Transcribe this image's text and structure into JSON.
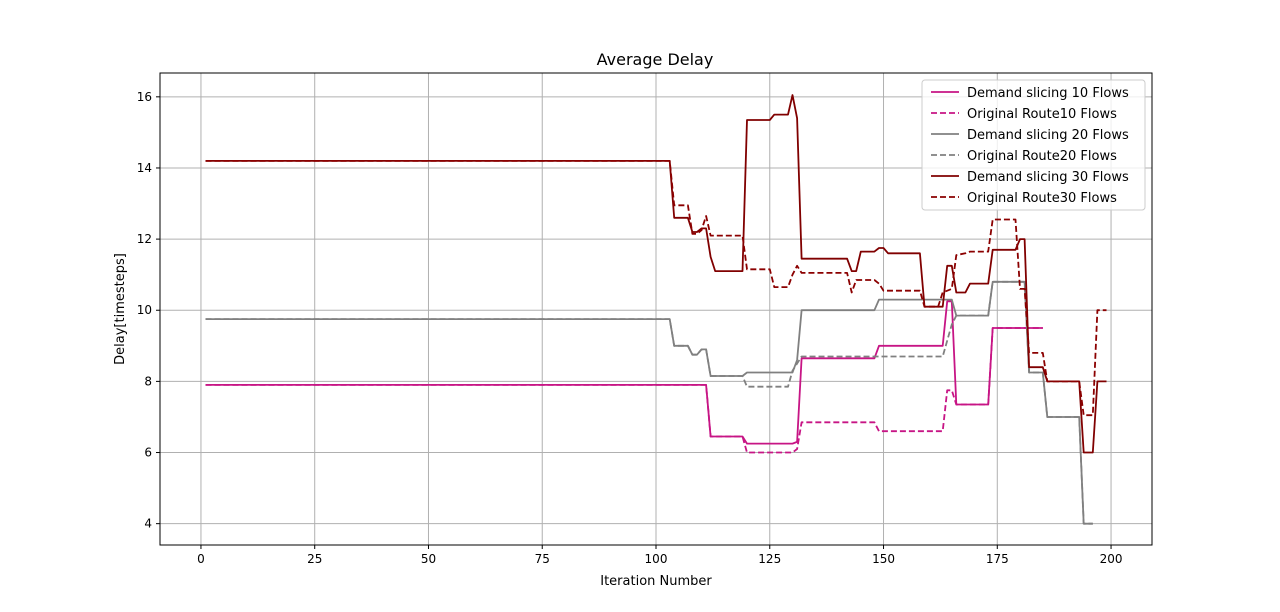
{
  "chart_data": {
    "type": "line",
    "title": "Average Delay",
    "xlabel": "Iteration Number",
    "ylabel": "Delay[timesteps]",
    "xlim": [
      -9,
      209
    ],
    "ylim": [
      3.4,
      16.67
    ],
    "xticks": [
      0,
      25,
      50,
      75,
      100,
      125,
      150,
      175,
      200
    ],
    "yticks": [
      4,
      6,
      8,
      10,
      12,
      14,
      16
    ],
    "grid": true,
    "legend_position": "top-right",
    "series": [
      {
        "name": "Demand slicing 10 Flows",
        "color": "#c71585",
        "dash": "solid",
        "points": [
          [
            1,
            7.9
          ],
          [
            111,
            7.9
          ],
          [
            112,
            6.45
          ],
          [
            119,
            6.45
          ],
          [
            120,
            6.25
          ],
          [
            130,
            6.25
          ],
          [
            131,
            6.3
          ],
          [
            132,
            8.65
          ],
          [
            148,
            8.65
          ],
          [
            149,
            9.0
          ],
          [
            163,
            9.0
          ],
          [
            164,
            10.25
          ],
          [
            165,
            10.25
          ],
          [
            166,
            7.35
          ],
          [
            173,
            7.35
          ],
          [
            174,
            9.5
          ],
          [
            185,
            9.5
          ]
        ]
      },
      {
        "name": "Original Route10 Flows",
        "color": "#c71585",
        "dash": "dashed",
        "points": [
          [
            1,
            7.9
          ],
          [
            111,
            7.9
          ],
          [
            112,
            6.45
          ],
          [
            119,
            6.45
          ],
          [
            120,
            6.0
          ],
          [
            130,
            6.0
          ],
          [
            131,
            6.1
          ],
          [
            132,
            6.85
          ],
          [
            148,
            6.85
          ],
          [
            149,
            6.6
          ],
          [
            163,
            6.6
          ],
          [
            164,
            7.75
          ],
          [
            165,
            7.75
          ],
          [
            166,
            7.35
          ],
          [
            173,
            7.35
          ],
          [
            174,
            9.5
          ],
          [
            185,
            9.5
          ]
        ]
      },
      {
        "name": "Demand slicing 20 Flows",
        "color": "#808080",
        "dash": "solid",
        "points": [
          [
            1,
            9.75
          ],
          [
            103,
            9.75
          ],
          [
            104,
            9.0
          ],
          [
            107,
            9.0
          ],
          [
            108,
            8.75
          ],
          [
            109,
            8.75
          ],
          [
            110,
            8.9
          ],
          [
            111,
            8.9
          ],
          [
            112,
            8.15
          ],
          [
            119,
            8.15
          ],
          [
            120,
            8.25
          ],
          [
            130,
            8.25
          ],
          [
            131,
            8.6
          ],
          [
            132,
            10.0
          ],
          [
            148,
            10.0
          ],
          [
            149,
            10.3
          ],
          [
            163,
            10.3
          ],
          [
            164,
            10.3
          ],
          [
            165,
            10.3
          ],
          [
            166,
            9.85
          ],
          [
            173,
            9.85
          ],
          [
            174,
            10.8
          ],
          [
            181,
            10.8
          ],
          [
            182,
            8.25
          ],
          [
            185,
            8.25
          ],
          [
            186,
            7.0
          ],
          [
            193,
            7.0
          ],
          [
            194,
            4.0
          ],
          [
            196,
            4.0
          ]
        ]
      },
      {
        "name": "Original Route20 Flows",
        "color": "#808080",
        "dash": "dashed",
        "points": [
          [
            1,
            9.75
          ],
          [
            103,
            9.75
          ],
          [
            104,
            9.0
          ],
          [
            107,
            9.0
          ],
          [
            108,
            8.75
          ],
          [
            109,
            8.75
          ],
          [
            110,
            8.9
          ],
          [
            111,
            8.9
          ],
          [
            112,
            8.15
          ],
          [
            119,
            8.15
          ],
          [
            120,
            7.85
          ],
          [
            129,
            7.85
          ],
          [
            130,
            8.3
          ],
          [
            132,
            8.7
          ],
          [
            163,
            8.7
          ],
          [
            165,
            9.6
          ],
          [
            166,
            9.85
          ],
          [
            173,
            9.85
          ],
          [
            174,
            10.8
          ],
          [
            181,
            10.8
          ],
          [
            182,
            8.25
          ],
          [
            185,
            8.25
          ],
          [
            186,
            7.0
          ],
          [
            193,
            7.0
          ],
          [
            194,
            4.0
          ],
          [
            196,
            4.0
          ]
        ]
      },
      {
        "name": "Demand slicing 30 Flows",
        "color": "#800000",
        "dash": "solid",
        "points": [
          [
            1,
            14.2
          ],
          [
            103,
            14.2
          ],
          [
            104,
            12.6
          ],
          [
            107,
            12.6
          ],
          [
            108,
            12.2
          ],
          [
            109,
            12.2
          ],
          [
            110,
            12.3
          ],
          [
            111,
            12.3
          ],
          [
            112,
            11.5
          ],
          [
            113,
            11.1
          ],
          [
            119,
            11.1
          ],
          [
            120,
            15.35
          ],
          [
            125,
            15.35
          ],
          [
            126,
            15.5
          ],
          [
            129,
            15.5
          ],
          [
            130,
            16.05
          ],
          [
            131,
            15.4
          ],
          [
            132,
            11.45
          ],
          [
            142,
            11.45
          ],
          [
            143,
            11.1
          ],
          [
            144,
            11.1
          ],
          [
            145,
            11.65
          ],
          [
            148,
            11.65
          ],
          [
            149,
            11.75
          ],
          [
            150,
            11.75
          ],
          [
            151,
            11.6
          ],
          [
            158,
            11.6
          ],
          [
            159,
            10.1
          ],
          [
            162,
            10.1
          ],
          [
            163,
            10.1
          ],
          [
            164,
            11.25
          ],
          [
            165,
            11.25
          ],
          [
            166,
            10.5
          ],
          [
            168,
            10.5
          ],
          [
            169,
            10.75
          ],
          [
            173,
            10.75
          ],
          [
            174,
            11.7
          ],
          [
            179,
            11.7
          ],
          [
            180,
            12.0
          ],
          [
            181,
            12.0
          ],
          [
            182,
            8.4
          ],
          [
            185,
            8.4
          ],
          [
            186,
            8.0
          ],
          [
            193,
            8.0
          ],
          [
            194,
            6.0
          ],
          [
            196,
            6.0
          ],
          [
            197,
            8.0
          ],
          [
            199,
            8.0
          ]
        ]
      },
      {
        "name": "Original Route30 Flows",
        "color": "#8b0000",
        "dash": "dashed",
        "points": [
          [
            1,
            14.2
          ],
          [
            103,
            14.2
          ],
          [
            104,
            12.95
          ],
          [
            107,
            12.95
          ],
          [
            108,
            12.15
          ],
          [
            109,
            12.15
          ],
          [
            110,
            12.25
          ],
          [
            111,
            12.65
          ],
          [
            112,
            12.1
          ],
          [
            119,
            12.1
          ],
          [
            120,
            11.15
          ],
          [
            125,
            11.15
          ],
          [
            126,
            10.65
          ],
          [
            129,
            10.65
          ],
          [
            130,
            11.0
          ],
          [
            131,
            11.25
          ],
          [
            132,
            11.05
          ],
          [
            142,
            11.05
          ],
          [
            143,
            10.5
          ],
          [
            144,
            10.85
          ],
          [
            148,
            10.85
          ],
          [
            149,
            10.75
          ],
          [
            150,
            10.55
          ],
          [
            158,
            10.55
          ],
          [
            159,
            10.1
          ],
          [
            162,
            10.1
          ],
          [
            163,
            10.5
          ],
          [
            165,
            10.6
          ],
          [
            166,
            11.55
          ],
          [
            168,
            11.6
          ],
          [
            169,
            11.65
          ],
          [
            173,
            11.65
          ],
          [
            174,
            12.55
          ],
          [
            179,
            12.55
          ],
          [
            180,
            10.6
          ],
          [
            181,
            10.6
          ],
          [
            182,
            8.8
          ],
          [
            185,
            8.8
          ],
          [
            186,
            8.0
          ],
          [
            193,
            8.0
          ],
          [
            194,
            7.05
          ],
          [
            196,
            7.05
          ],
          [
            197,
            10.0
          ],
          [
            199,
            10.0
          ]
        ]
      }
    ]
  }
}
